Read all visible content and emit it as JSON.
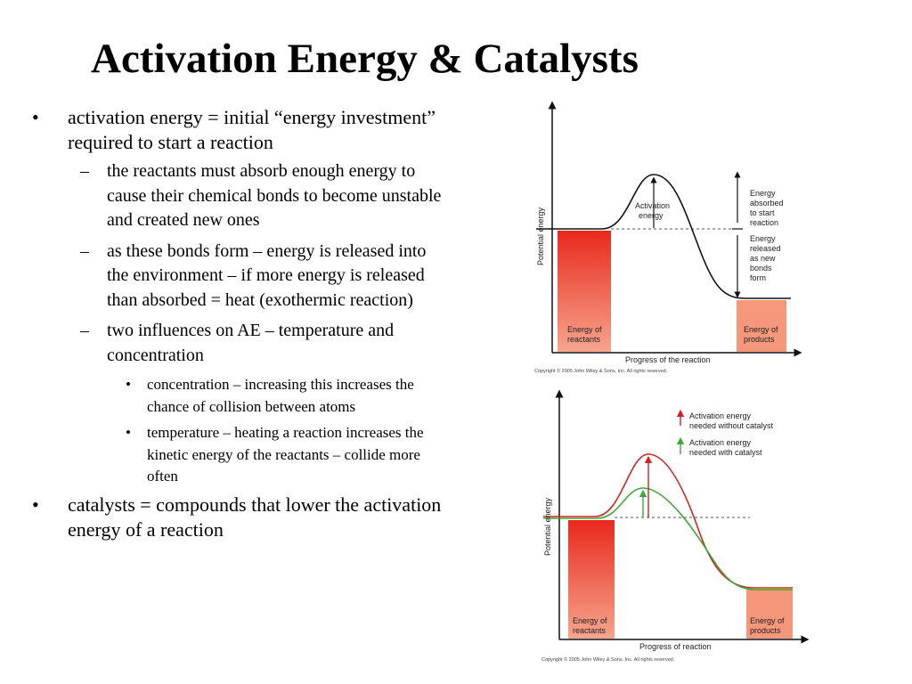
{
  "title": "Activation Energy & Catalysts",
  "bullets": [
    {
      "level": 1,
      "mark": "•",
      "text": "activation energy = initial “energy investment” required to start a reaction"
    },
    {
      "level": 2,
      "mark": "–",
      "text": "the reactants must absorb enough energy to cause their chemical bonds to become unstable and created new ones"
    },
    {
      "level": 2,
      "mark": "–",
      "text": "as these bonds form – energy is released into the environment – if more energy is released than absorbed = heat (exothermic reaction)"
    },
    {
      "level": 2,
      "mark": "–",
      "text": "two influences on AE – temperature and concentration"
    },
    {
      "level": 3,
      "mark": "•",
      "text": "concentration – increasing this increases the chance of collision between atoms"
    },
    {
      "level": 3,
      "mark": "•",
      "text": "temperature – heating a reaction increases the kinetic energy of the reactants – collide more often"
    },
    {
      "level": 1,
      "mark": "•",
      "text": "catalysts = compounds that lower the activation energy of a reaction"
    }
  ],
  "diagram_top": {
    "y_axis": "Potential energy",
    "x_axis": "Progress of the reaction",
    "reactants": [
      "Energy of",
      "reactants"
    ],
    "products": [
      "Energy of",
      "products"
    ],
    "activation": [
      "Activation",
      "energy"
    ],
    "absorbed": [
      "Energy",
      "absorbed",
      "to start",
      "reaction"
    ],
    "released": [
      "Energy",
      "released",
      "as new",
      "bonds",
      "form"
    ],
    "copyright": "Copyright © 2005 John Wiley & Sons, Inc.  All rights reserved.",
    "colors": {
      "bar_top": "#e8291c",
      "bar_bottom": "#f7a58e"
    }
  },
  "diagram_bottom": {
    "y_axis": "Potential energy",
    "x_axis": "Progress of reaction",
    "reactants": [
      "Energy of",
      "reactants"
    ],
    "products": [
      "Energy of",
      "products"
    ],
    "legend": [
      {
        "lines": [
          "Activation energy",
          "needed without catalyst"
        ],
        "color": "#d42020"
      },
      {
        "lines": [
          "Activation energy",
          "needed with catalyst"
        ],
        "color": "#3aaa35"
      }
    ],
    "copyright": "Copyright © 2005 John Wiley & Sons, Inc.  All rights reserved."
  }
}
